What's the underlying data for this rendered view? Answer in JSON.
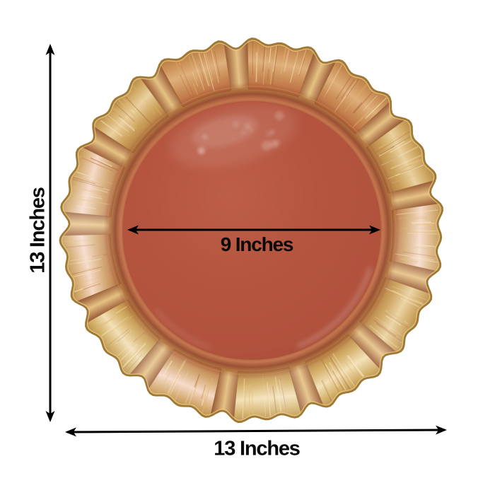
{
  "title": "Charger plate dimension diagram",
  "background": "#ffffff",
  "arrow_color": "#000000",
  "dimensions": {
    "height_label": "13 Inches",
    "width_label": "13 Inches",
    "inner_diameter_label": "9 Inches"
  },
  "plate": {
    "description": "Round terracotta acrylic charger plate with gold brushed waved scalloped rim",
    "panel_tints": [
      "red",
      "red",
      "gold",
      "bright",
      "gold",
      "brightgold",
      "brightgold",
      "bright",
      "brightgold",
      "bright",
      "bright",
      "gold",
      "red"
    ],
    "colors": {
      "rim_base": "#c49a52",
      "palettes": {
        "red": [
          "#b9643f",
          "#c98a54",
          "#dfb07c",
          "#c98e54",
          "#ad7a3c"
        ],
        "gold": [
          "#b07440",
          "#cba05a",
          "#ead1a0",
          "#cda45e",
          "#ab8140"
        ],
        "bright": [
          "#b66b42",
          "#d2a770",
          "#f6d9c8",
          "#d4a96e",
          "#b3873f"
        ],
        "brightgold": [
          "#ae763c",
          "#d2ac62",
          "#f2dfb4",
          "#d2ae66",
          "#ac843c"
        ]
      },
      "ridge_edge": "#8f4c2c",
      "ridge_light": "#e5c183",
      "streak_light": "#f7e7be",
      "streak_gold": "#e0b96e",
      "streak_dark": "#9e542e",
      "outer_stroke": "#9e7834",
      "outer_inner_line": "#e6c883",
      "well_dark": "#8a3a28",
      "well_lip": "#c5684d",
      "well_groove": "#8e3e2b",
      "gold_line": "#c59a52",
      "inner_center": "#bd5e46",
      "inner_mid": "#b5553f",
      "inner_edge": "#a34b37"
    }
  }
}
